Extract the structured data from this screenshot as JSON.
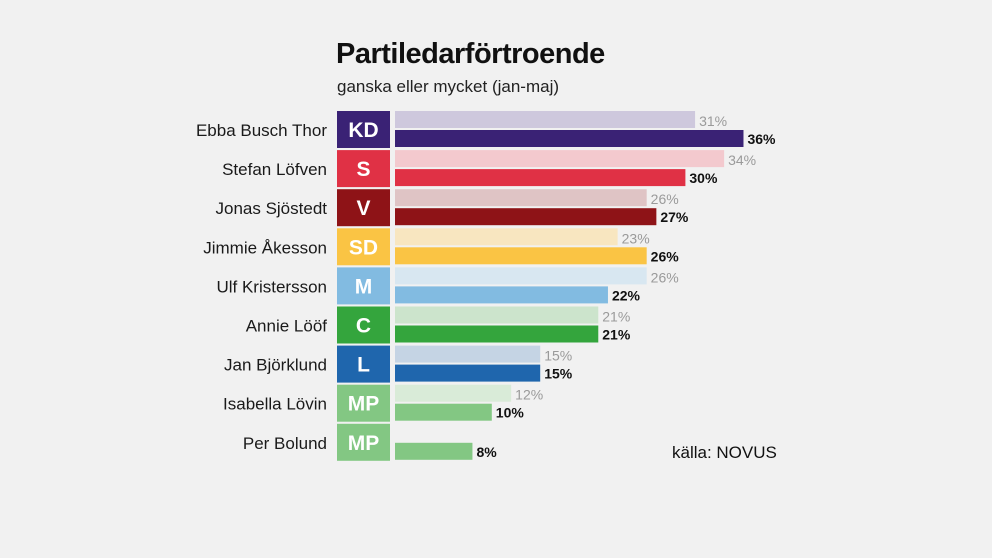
{
  "chart_data": {
    "type": "bar",
    "orientation": "horizontal",
    "title": "Partiledarförtroende",
    "subtitle": "ganska eller mycket (jan-maj)",
    "source": "källa: NOVUS",
    "xlim": [
      0,
      40
    ],
    "grid": false,
    "categories": [
      "Ebba Busch Thor",
      "Stefan Löfven",
      "Jonas Sjöstedt",
      "Jimmie Åkesson",
      "Ulf Kristersson",
      "Annie Lööf",
      "Jan Björklund",
      "Isabella Lövin",
      "Per Bolund"
    ],
    "parties": [
      "KD",
      "S",
      "V",
      "SD",
      "M",
      "C",
      "L",
      "MP",
      "MP"
    ],
    "party_colors": [
      "#3a2275",
      "#e03145",
      "#8e1317",
      "#fac444",
      "#82bbe1",
      "#34a53d",
      "#1f66ad",
      "#83c783",
      "#83c783"
    ],
    "party_colors_light": [
      "#cec8dd",
      "#f3c9ce",
      "#dfc4c5",
      "#f8e6c0",
      "#d8e7f1",
      "#cce4cc",
      "#c5d4e4",
      "#d9ebd8",
      "#d9ebd8"
    ],
    "series": [
      {
        "name": "jan",
        "values": [
          31,
          34,
          26,
          23,
          26,
          21,
          15,
          12,
          null
        ]
      },
      {
        "name": "maj",
        "values": [
          36,
          30,
          27,
          26,
          22,
          21,
          15,
          10,
          8
        ]
      }
    ],
    "value_suffix": "%"
  }
}
